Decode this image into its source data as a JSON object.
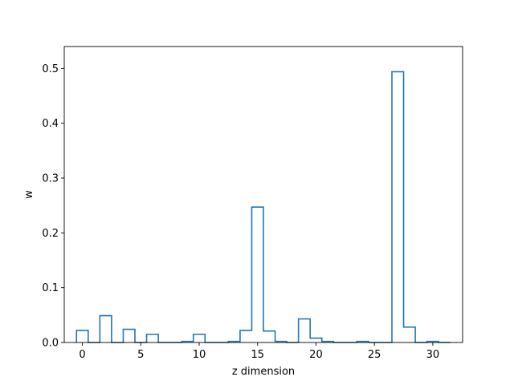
{
  "chart_data": {
    "type": "step",
    "title": "",
    "xlabel": "z dimension",
    "ylabel": "w",
    "xlim": [
      -1.55,
      32.55
    ],
    "ylim": [
      0,
      0.54
    ],
    "grid": false,
    "legend": "none",
    "color": "#1f77b4",
    "x": [
      0,
      1,
      2,
      3,
      4,
      5,
      6,
      7,
      8,
      9,
      10,
      11,
      12,
      13,
      14,
      15,
      16,
      17,
      18,
      19,
      20,
      21,
      22,
      23,
      24,
      25,
      26,
      27,
      28,
      29,
      30,
      31
    ],
    "values": [
      0.022,
      0.0,
      0.049,
      0.0,
      0.024,
      0.0,
      0.015,
      0.0,
      0.0,
      0.002,
      0.015,
      0.0,
      0.0,
      0.002,
      0.022,
      0.247,
      0.021,
      0.002,
      0.0,
      0.043,
      0.008,
      0.002,
      0.0,
      0.0,
      0.002,
      0.0,
      0.0,
      0.494,
      0.028,
      0.0,
      0.002,
      0.0
    ],
    "x_ticks": [
      0,
      5,
      10,
      15,
      20,
      25,
      30
    ],
    "y_ticks": [
      0.0,
      0.1,
      0.2,
      0.3,
      0.4,
      0.5
    ],
    "x_tick_labels": [
      "0",
      "5",
      "10",
      "15",
      "20",
      "25",
      "30"
    ],
    "y_tick_labels": [
      "0.0",
      "0.1",
      "0.2",
      "0.3",
      "0.4",
      "0.5"
    ]
  }
}
